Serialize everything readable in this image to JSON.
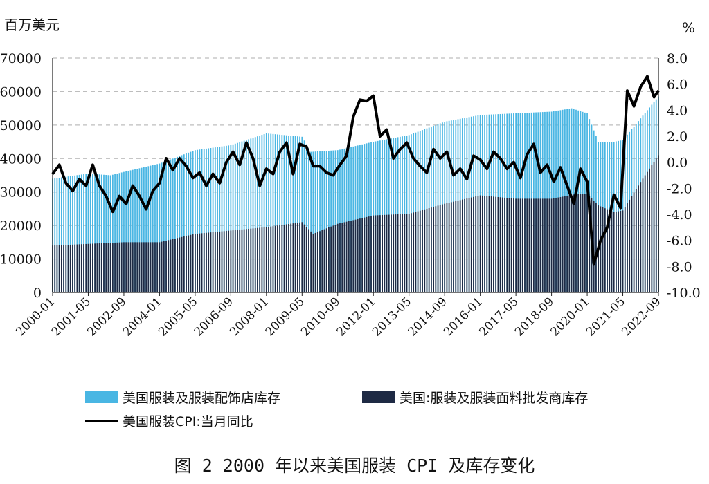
{
  "chart_data": {
    "type": "bar",
    "title": "",
    "caption": "图 2 2000 年以来美国服装 CPI 及库存变化",
    "y_left_unit": "百万美元",
    "y_right_unit": "%",
    "y_left_ticks": [
      "0",
      "10000",
      "20000",
      "30000",
      "40000",
      "50000",
      "60000",
      "70000"
    ],
    "y_right_ticks": [
      "-10.0",
      "-8.0",
      "-6.0",
      "-4.0",
      "-2.0",
      "0.0",
      "2.0",
      "4.0",
      "6.0",
      "8.0"
    ],
    "ylim_left": [
      0,
      70000
    ],
    "ylim_right": [
      -10,
      8
    ],
    "x_ticks": [
      "2000-01",
      "2001-05",
      "2002-09",
      "2004-01",
      "2005-05",
      "2006-09",
      "2008-01",
      "2009-05",
      "2010-09",
      "2012-01",
      "2013-05",
      "2014-09",
      "2016-01",
      "2017-05",
      "2018-09",
      "2020-01",
      "2021-05",
      "2022-09"
    ],
    "x_range": [
      "2000-01",
      "2022-09"
    ],
    "grid": "horizontal dashed",
    "legend_position": "bottom",
    "series": [
      {
        "name": "美国服装及服装配饰店库存",
        "kind": "bar",
        "axis": "left",
        "color": "#49b6e3",
        "keypoints": [
          [
            "2000-01",
            34000
          ],
          [
            "2001-05",
            35500
          ],
          [
            "2002-03",
            35000
          ],
          [
            "2002-09",
            36000
          ],
          [
            "2004-01",
            38500
          ],
          [
            "2005-05",
            42500
          ],
          [
            "2006-09",
            44000
          ],
          [
            "2008-01",
            47500
          ],
          [
            "2009-05",
            46500
          ],
          [
            "2009-09",
            42000
          ],
          [
            "2010-09",
            42500
          ],
          [
            "2012-01",
            45000
          ],
          [
            "2013-05",
            47000
          ],
          [
            "2014-09",
            51000
          ],
          [
            "2016-01",
            53000
          ],
          [
            "2017-05",
            53500
          ],
          [
            "2018-09",
            54000
          ],
          [
            "2019-06",
            55000
          ],
          [
            "2020-01",
            53500
          ],
          [
            "2020-06",
            45000
          ],
          [
            "2021-01",
            45000
          ],
          [
            "2021-05",
            45500
          ],
          [
            "2022-01",
            52000
          ],
          [
            "2022-09",
            58500
          ]
        ]
      },
      {
        "name": "美国:服装及服装面料批发商库存",
        "kind": "bar",
        "axis": "left",
        "color": "#1e2a44",
        "keypoints": [
          [
            "2000-01",
            14000
          ],
          [
            "2001-05",
            14500
          ],
          [
            "2002-09",
            15000
          ],
          [
            "2004-01",
            15000
          ],
          [
            "2005-05",
            17500
          ],
          [
            "2006-09",
            18500
          ],
          [
            "2008-01",
            19500
          ],
          [
            "2009-05",
            21000
          ],
          [
            "2009-10",
            17500
          ],
          [
            "2010-09",
            20500
          ],
          [
            "2012-01",
            23000
          ],
          [
            "2013-05",
            23500
          ],
          [
            "2014-09",
            26500
          ],
          [
            "2016-01",
            29000
          ],
          [
            "2017-05",
            28000
          ],
          [
            "2018-09",
            28000
          ],
          [
            "2019-09",
            29500
          ],
          [
            "2020-01",
            29500
          ],
          [
            "2020-06",
            26000
          ],
          [
            "2021-01",
            24000
          ],
          [
            "2021-05",
            24500
          ],
          [
            "2022-01",
            33000
          ],
          [
            "2022-09",
            41000
          ]
        ]
      },
      {
        "name": "美国服装CPI:当月同比",
        "kind": "line",
        "axis": "right",
        "color": "#000000",
        "values": [
          [
            "2000-01",
            -0.9
          ],
          [
            "2000-04",
            -0.2
          ],
          [
            "2000-07",
            -1.6
          ],
          [
            "2000-10",
            -2.2
          ],
          [
            "2001-01",
            -1.3
          ],
          [
            "2001-04",
            -1.8
          ],
          [
            "2001-07",
            -0.2
          ],
          [
            "2001-10",
            -1.8
          ],
          [
            "2002-01",
            -2.6
          ],
          [
            "2002-04",
            -3.8
          ],
          [
            "2002-07",
            -2.6
          ],
          [
            "2002-10",
            -3.2
          ],
          [
            "2003-01",
            -1.8
          ],
          [
            "2003-04",
            -2.6
          ],
          [
            "2003-07",
            -3.6
          ],
          [
            "2003-10",
            -2.2
          ],
          [
            "2004-01",
            -1.6
          ],
          [
            "2004-04",
            0.3
          ],
          [
            "2004-07",
            -0.6
          ],
          [
            "2004-10",
            0.3
          ],
          [
            "2005-01",
            -0.3
          ],
          [
            "2005-04",
            -1.2
          ],
          [
            "2005-07",
            -0.8
          ],
          [
            "2005-10",
            -1.8
          ],
          [
            "2006-01",
            -0.9
          ],
          [
            "2006-04",
            -1.6
          ],
          [
            "2006-07",
            0.0
          ],
          [
            "2006-10",
            0.8
          ],
          [
            "2007-01",
            -0.2
          ],
          [
            "2007-04",
            1.5
          ],
          [
            "2007-07",
            0.3
          ],
          [
            "2007-10",
            -1.8
          ],
          [
            "2008-01",
            -0.5
          ],
          [
            "2008-04",
            -0.9
          ],
          [
            "2008-07",
            0.8
          ],
          [
            "2008-10",
            1.5
          ],
          [
            "2009-01",
            -0.9
          ],
          [
            "2009-04",
            1.4
          ],
          [
            "2009-07",
            1.2
          ],
          [
            "2009-10",
            -0.3
          ],
          [
            "2010-01",
            -0.3
          ],
          [
            "2010-04",
            -0.8
          ],
          [
            "2010-07",
            -1.0
          ],
          [
            "2010-10",
            -0.2
          ],
          [
            "2011-01",
            0.5
          ],
          [
            "2011-04",
            3.5
          ],
          [
            "2011-07",
            4.8
          ],
          [
            "2011-10",
            4.7
          ],
          [
            "2012-01",
            5.1
          ],
          [
            "2012-04",
            2.0
          ],
          [
            "2012-07",
            2.5
          ],
          [
            "2012-10",
            0.3
          ],
          [
            "2013-01",
            1.0
          ],
          [
            "2013-04",
            1.5
          ],
          [
            "2013-07",
            0.3
          ],
          [
            "2013-10",
            -0.3
          ],
          [
            "2014-01",
            -0.8
          ],
          [
            "2014-04",
            1.0
          ],
          [
            "2014-07",
            0.3
          ],
          [
            "2014-10",
            0.8
          ],
          [
            "2015-01",
            -1.0
          ],
          [
            "2015-04",
            -0.5
          ],
          [
            "2015-07",
            -1.3
          ],
          [
            "2015-10",
            0.5
          ],
          [
            "2016-01",
            0.2
          ],
          [
            "2016-04",
            -0.5
          ],
          [
            "2016-07",
            0.8
          ],
          [
            "2016-10",
            0.3
          ],
          [
            "2017-01",
            -0.5
          ],
          [
            "2017-04",
            0.0
          ],
          [
            "2017-07",
            -1.2
          ],
          [
            "2017-10",
            0.6
          ],
          [
            "2018-01",
            1.4
          ],
          [
            "2018-04",
            -0.8
          ],
          [
            "2018-07",
            -0.2
          ],
          [
            "2018-10",
            -1.5
          ],
          [
            "2019-01",
            -0.4
          ],
          [
            "2019-04",
            -1.8
          ],
          [
            "2019-07",
            -3.2
          ],
          [
            "2019-10",
            -0.5
          ],
          [
            "2020-01",
            -1.5
          ],
          [
            "2020-04",
            -7.8
          ],
          [
            "2020-07",
            -6.0
          ],
          [
            "2020-10",
            -5.0
          ],
          [
            "2021-01",
            -2.5
          ],
          [
            "2021-04",
            -3.5
          ],
          [
            "2021-07",
            5.5
          ],
          [
            "2021-10",
            4.3
          ],
          [
            "2022-01",
            5.8
          ],
          [
            "2022-04",
            6.6
          ],
          [
            "2022-07",
            5.0
          ],
          [
            "2022-09",
            5.5
          ]
        ]
      }
    ]
  }
}
